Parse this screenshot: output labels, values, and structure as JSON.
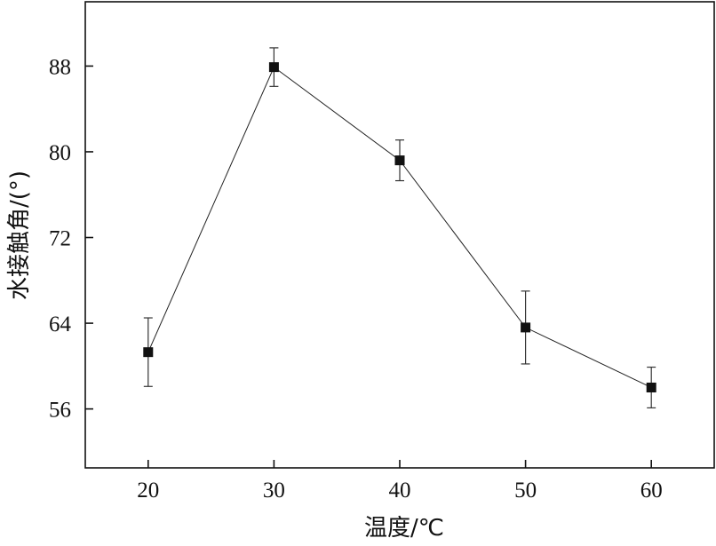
{
  "chart_data": {
    "type": "line",
    "xlabel": "温度/℃",
    "ylabel": "水接触角/(°)",
    "xlim": [
      15,
      65
    ],
    "ylim": [
      50.5,
      94
    ],
    "xticks": [
      20,
      30,
      40,
      50,
      60
    ],
    "yticks": [
      56,
      64,
      72,
      80,
      88
    ],
    "grid": false,
    "marker": "square",
    "colors": {
      "line": "#222222",
      "marker": "#111111"
    },
    "points": [
      {
        "x": 20,
        "y": 61.3,
        "err": 3.2
      },
      {
        "x": 30,
        "y": 87.9,
        "err": 1.8
      },
      {
        "x": 40,
        "y": 79.2,
        "err": 1.9
      },
      {
        "x": 50,
        "y": 63.6,
        "err": 3.4
      },
      {
        "x": 60,
        "y": 58.0,
        "err": 1.9
      }
    ]
  }
}
